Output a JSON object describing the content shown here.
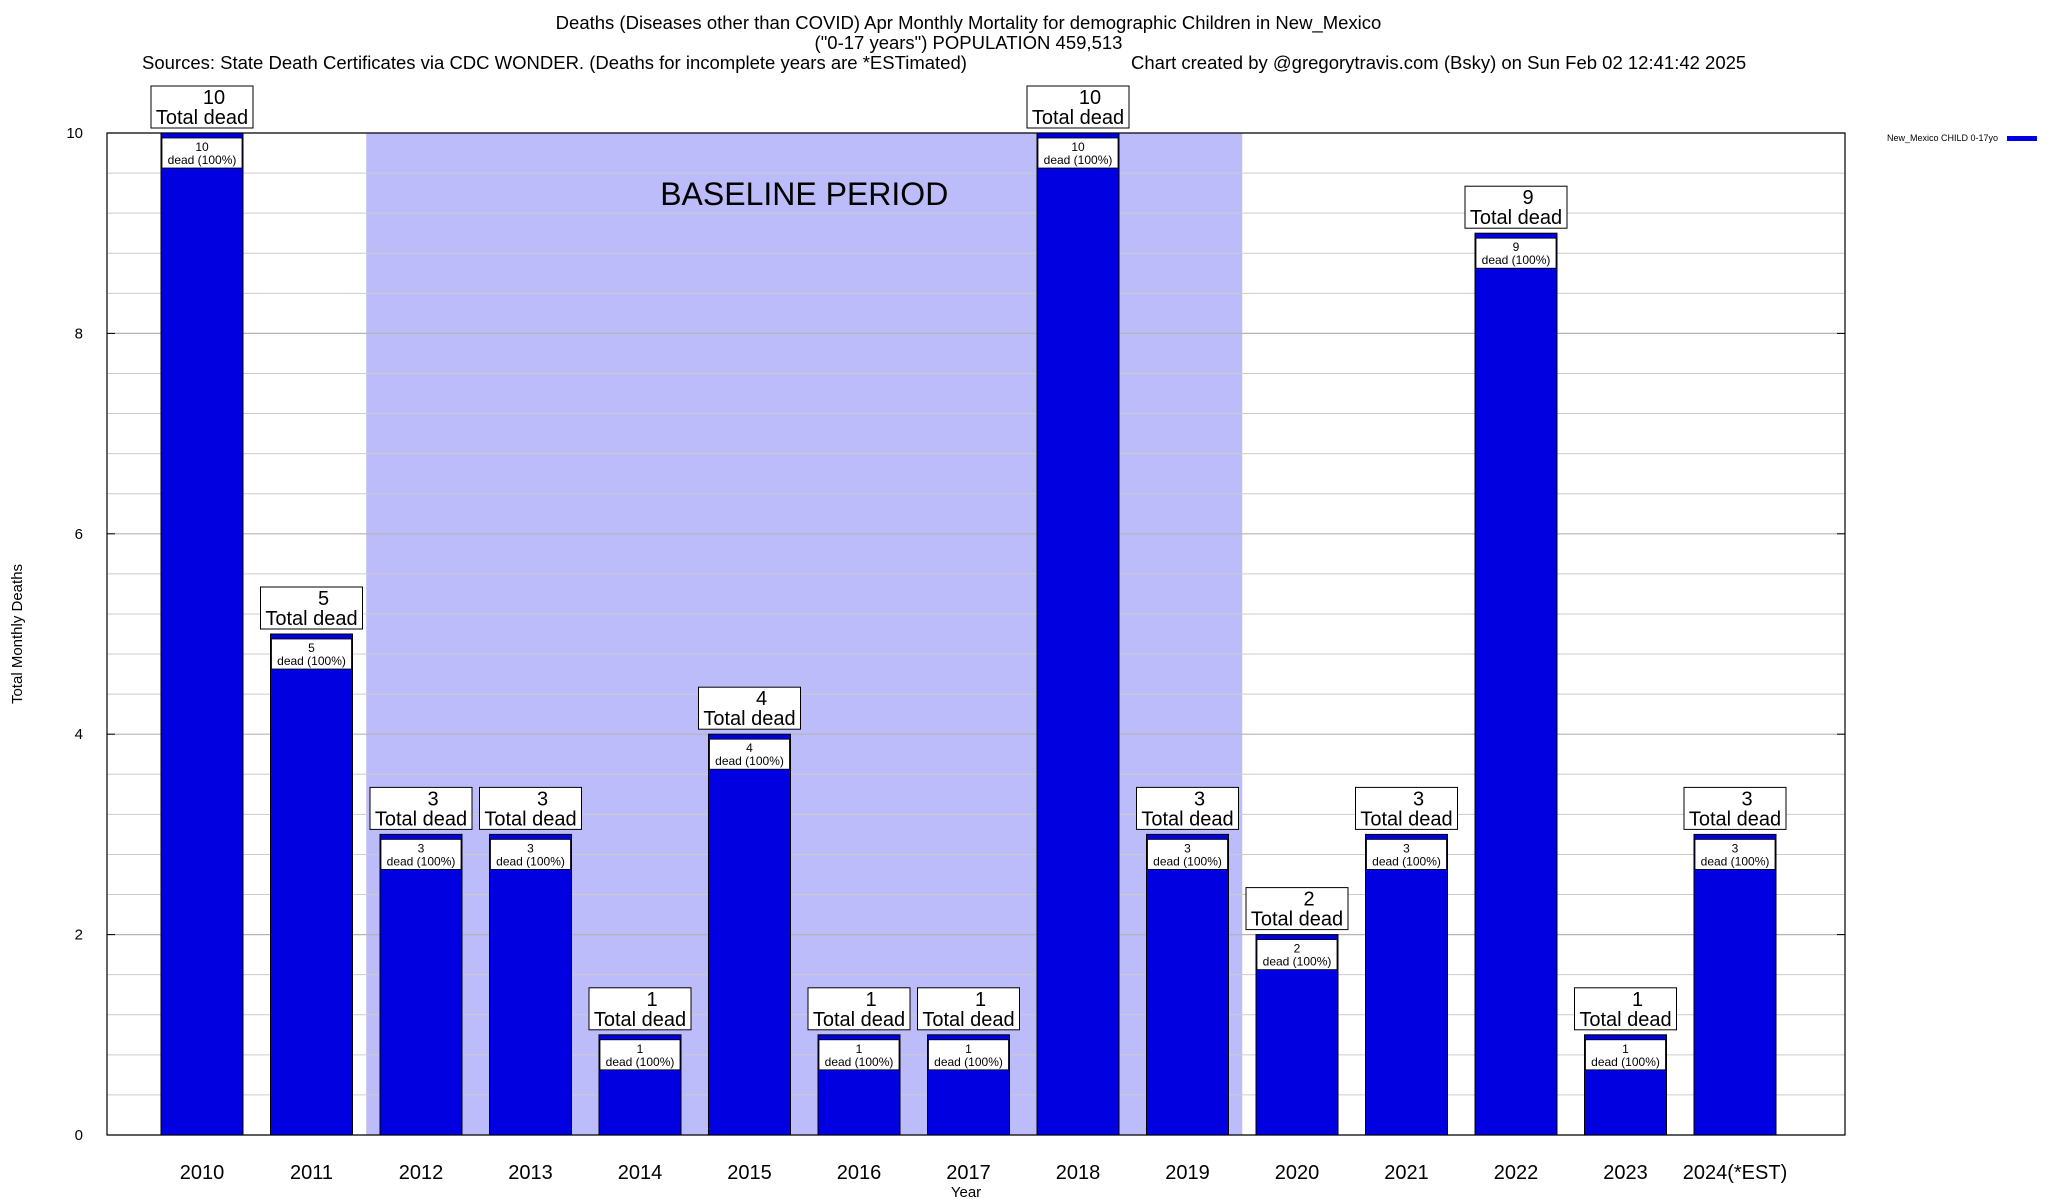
{
  "header": {
    "title_line1": "Deaths (Diseases other than COVID) Apr Monthly Mortality for demographic Children in New_Mexico",
    "title_line2": "(\"0-17 years\") POPULATION 459,513",
    "sources": "Sources: State Death Certificates via CDC WONDER. (Deaths for incomplete years are *ESTimated)",
    "credit": "Chart created by @gregorytravis.com (Bsky) on Sun Feb 02 12:41:42 2025"
  },
  "chart_data": {
    "type": "bar",
    "title": "Deaths (Diseases other than COVID) Apr Monthly Mortality for demographic Children in New_Mexico",
    "xlabel": "Year",
    "ylabel": "Total Monthly Deaths",
    "ylim": [
      0,
      10
    ],
    "yticks": [
      0,
      2,
      4,
      6,
      8,
      10
    ],
    "categories": [
      "2010",
      "2011",
      "2012",
      "2013",
      "2014",
      "2015",
      "2016",
      "2017",
      "2018",
      "2019",
      "2020",
      "2021",
      "2022",
      "2023",
      "2024(*EST)"
    ],
    "series": [
      {
        "name": "New_Mexico CHILD 0-17yo",
        "color": "#0000e0",
        "values": [
          10,
          5,
          3,
          3,
          1,
          4,
          1,
          1,
          10,
          3,
          2,
          3,
          9,
          1,
          3
        ]
      }
    ],
    "top_label_suffix": "Total dead",
    "inner_label_suffix": "dead (100%)",
    "baseline_region": {
      "label": "BASELINE PERIOD",
      "from": "2012",
      "to": "2019",
      "color": "#bcbcfa"
    },
    "legend_position": "top-right",
    "grid": true
  }
}
